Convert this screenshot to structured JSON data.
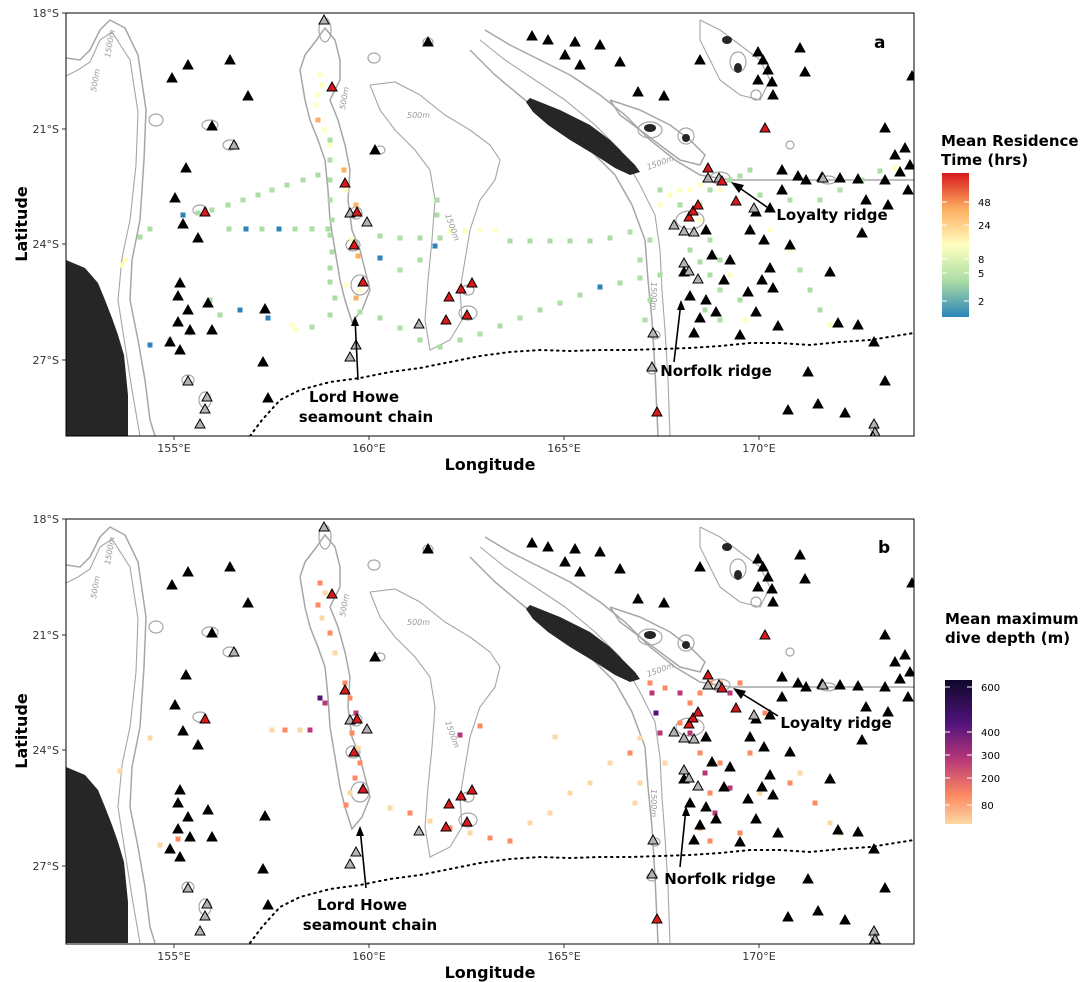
{
  "panels": [
    {
      "tag": "a",
      "annotations": {
        "lord_howe": [
          "Lord Howe",
          "seamount chain"
        ],
        "norfolk": "Norfolk ridge",
        "loyalty": "Loyalty ridge"
      },
      "legend": {
        "title": [
          "Mean Residence",
          "Time (hrs)"
        ],
        "ticks": [
          "48",
          "24",
          "8",
          "5",
          "2"
        ]
      }
    },
    {
      "tag": "b",
      "annotations": {
        "lord_howe": [
          "Lord Howe",
          "seamount chain"
        ],
        "norfolk": "Norfolk ridge",
        "loyalty": "Loyalty ridge"
      },
      "legend": {
        "title": [
          "Mean maximum",
          "dive depth (m)"
        ],
        "ticks": [
          "600",
          "400",
          "300",
          "200",
          "80"
        ]
      }
    }
  ],
  "axes": {
    "x_ticks": [
      "155°E",
      "160°E",
      "165°E",
      "170°E"
    ],
    "y_ticks": [
      "18°S",
      "21°S",
      "24°S",
      "27°S"
    ],
    "xlabel": "Longitude",
    "ylabel": "Latitude"
  },
  "contour_labels": {
    "c500": "500m",
    "c1500": "1500m"
  },
  "colors": {
    "land": "#262626",
    "contour": "#a6a6a6",
    "seamount_red": "#d7191c",
    "seamount_grey": "#b3b3b3",
    "seamount_black": "#000000",
    "residence_scale": [
      "#d7191c",
      "#fdae61",
      "#ffffbf",
      "#abdda4",
      "#2b83ba"
    ],
    "depth_scale": [
      "#0d0829",
      "#51127c",
      "#b73779",
      "#fc8961",
      "#fcd8a4"
    ]
  }
}
